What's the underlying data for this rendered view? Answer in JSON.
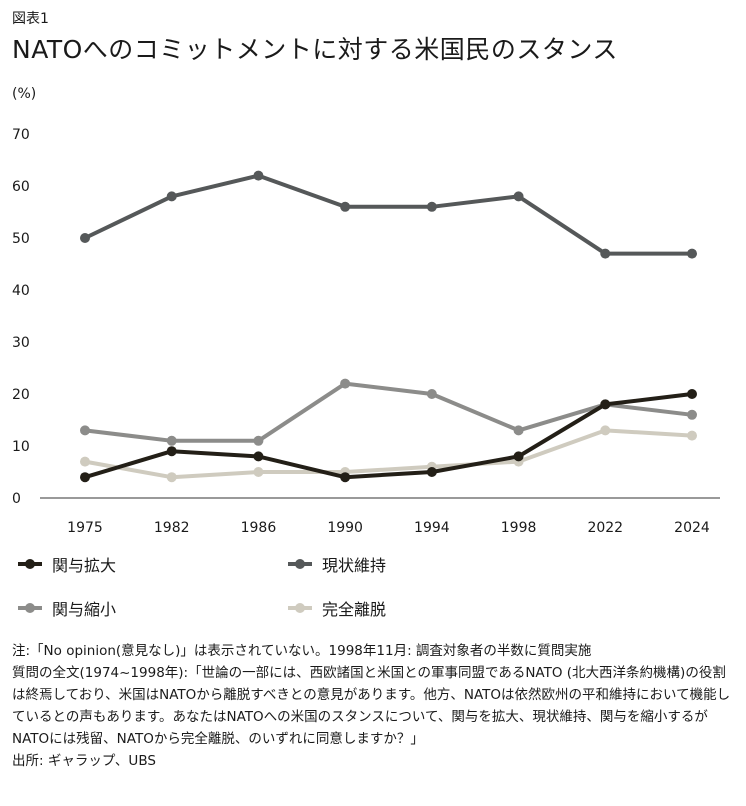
{
  "figure_label": "図表1",
  "chart_data": {
    "type": "line",
    "title": "NATOへのコミットメントに対する米国民のスタンス",
    "ylabel": "(%)",
    "xlabel": "",
    "categories": [
      "1975",
      "1982",
      "1986",
      "1990",
      "1994",
      "1998",
      "2022",
      "2024"
    ],
    "ylim": [
      0,
      70
    ],
    "yticks": [
      0,
      10,
      20,
      30,
      40,
      50,
      60,
      70
    ],
    "grid": false,
    "legend_position": "bottom",
    "series": [
      {
        "name": "現状維持",
        "color": "#555859",
        "values": [
          50,
          58,
          62,
          56,
          56,
          58,
          47,
          47
        ]
      },
      {
        "name": "関与縮小",
        "color": "#8c8c8a",
        "values": [
          13,
          11,
          11,
          22,
          20,
          13,
          18,
          16
        ]
      },
      {
        "name": "完全離脱",
        "color": "#cfcbbf",
        "values": [
          7,
          4,
          5,
          5,
          6,
          7,
          13,
          12
        ]
      },
      {
        "name": "関与拡大",
        "color": "#231f17",
        "values": [
          4,
          9,
          8,
          4,
          5,
          8,
          18,
          20
        ]
      }
    ]
  },
  "legend": [
    {
      "label": "関与拡大",
      "color": "#231f17"
    },
    {
      "label": "現状維持",
      "color": "#555859"
    },
    {
      "label": "関与縮小",
      "color": "#8c8c8a"
    },
    {
      "label": "完全離脱",
      "color": "#cfcbbf"
    }
  ],
  "notes": {
    "note": "注:「No opinion(意見なし)」は表示されていない。1998年11月: 調査対象者の半数に質問実施",
    "question": "質問の全文(1974~1998年):「世論の一部には、西欧諸国と米国との軍事同盟であるNATO (北大西洋条約機構)の役割は終焉しており、米国はNATOから離脱すべきとの意見があります。他方、NATOは依然欧州の平和維持において機能しているとの声もあります。あなたはNATOへの米国のスタンスについて、関与を拡大、現状維持、関与を縮小するがNATOには残留、NATOから完全離脱、のいずれに同意しますか？」",
    "source": "出所: ギャラップ、UBS"
  }
}
